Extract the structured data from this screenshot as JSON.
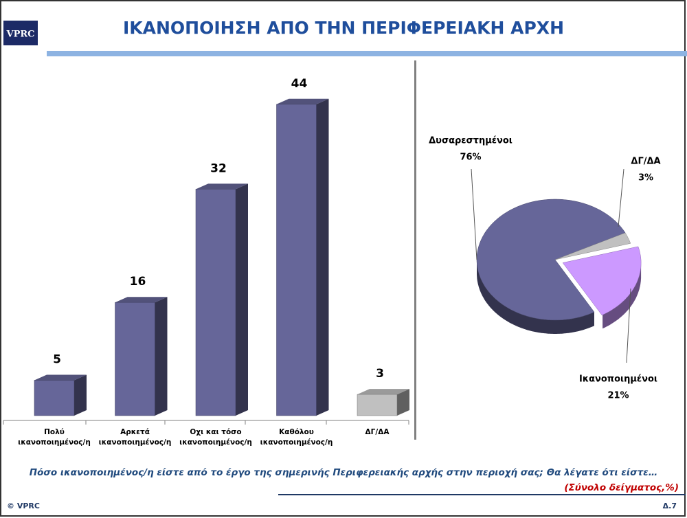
{
  "header": {
    "logo": "VPRC",
    "title": "ΙΚΑΝΟΠΟΙΗΣΗ ΑΠΟ ΤΗΝ ΠΕΡΙΦΕΡΕΙΑΚΗ ΑΡΧΗ"
  },
  "chart_data": [
    {
      "type": "bar",
      "categories": [
        "Πολύ ικανοποιημένος/η",
        "Αρκετά ικανοποιημένος/η",
        "Οχι και τόσο ικανοποιημένος/η",
        "Καθόλου ικανοποιημένος/η",
        "ΔΓ/ΔΑ"
      ],
      "values": [
        5,
        16,
        32,
        44,
        3
      ],
      "colors": [
        "#666699",
        "#666699",
        "#666699",
        "#666699",
        "#c0c0c0"
      ]
    },
    {
      "type": "pie",
      "categories": [
        "Δυσαρεστημένοι",
        "ΔΓ/ΔΑ",
        "Ικανοποιημένοι"
      ],
      "values": [
        76,
        3,
        21
      ],
      "value_labels": [
        "76%",
        "3%",
        "21%"
      ],
      "colors": [
        "#666699",
        "#c0c0c0",
        "#cc99ff"
      ]
    }
  ],
  "question": "Πόσο ικανοποιημένος/η είστε από το έργο της σημερινής Περιφερειακής αρχής στην περιοχή σας; Θα λέγατε ότι είστε…",
  "note": "(Σύνολο δείγματος,%)",
  "footer": {
    "copyright": "© VPRC",
    "page": "Δ.7"
  }
}
